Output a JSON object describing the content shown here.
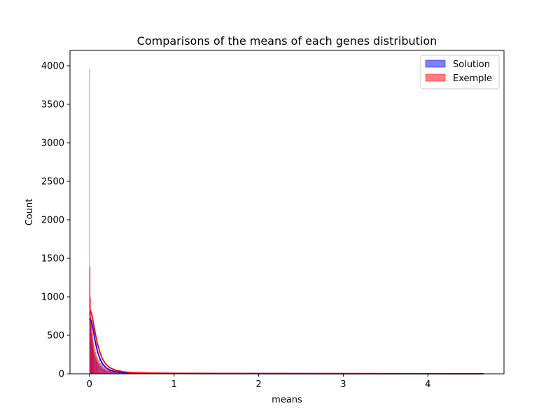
{
  "chart_data": {
    "type": "histogram",
    "title": "Comparisons of the means of each genes distribution",
    "xlabel": "means",
    "ylabel": "Count",
    "xlim": [
      -0.23,
      4.9
    ],
    "ylim": [
      0,
      4200
    ],
    "x_ticks": [
      0,
      1,
      2,
      3,
      4
    ],
    "y_ticks": [
      0,
      500,
      1000,
      1500,
      2000,
      2500,
      3000,
      3500,
      4000
    ],
    "grid": false,
    "legend_position": "top-right",
    "series": [
      {
        "name": "Solution",
        "color": "#0000ff",
        "fill_opacity": 0.5,
        "bins": [
          [
            0.0,
            1400
          ],
          [
            0.005,
            1020
          ],
          [
            0.01,
            720
          ],
          [
            0.015,
            600
          ],
          [
            0.02,
            520
          ],
          [
            0.025,
            470
          ],
          [
            0.03,
            430
          ],
          [
            0.035,
            390
          ],
          [
            0.04,
            340
          ],
          [
            0.045,
            300
          ],
          [
            0.05,
            270
          ],
          [
            0.06,
            230
          ],
          [
            0.07,
            200
          ],
          [
            0.08,
            170
          ],
          [
            0.09,
            150
          ],
          [
            0.1,
            130
          ],
          [
            0.12,
            100
          ],
          [
            0.14,
            80
          ],
          [
            0.16,
            60
          ],
          [
            0.18,
            48
          ],
          [
            0.2,
            38
          ],
          [
            0.25,
            26
          ],
          [
            0.3,
            18
          ],
          [
            0.35,
            12
          ],
          [
            0.4,
            9
          ],
          [
            0.5,
            6
          ],
          [
            0.7,
            4
          ],
          [
            1.0,
            3
          ],
          [
            1.5,
            2
          ],
          [
            2.5,
            1
          ],
          [
            4.0,
            1
          ]
        ],
        "kde": [
          [
            0.0,
            720
          ],
          [
            0.02,
            690
          ],
          [
            0.04,
            600
          ],
          [
            0.06,
            470
          ],
          [
            0.08,
            360
          ],
          [
            0.1,
            270
          ],
          [
            0.13,
            180
          ],
          [
            0.16,
            120
          ],
          [
            0.2,
            75
          ],
          [
            0.25,
            45
          ],
          [
            0.3,
            30
          ],
          [
            0.4,
            16
          ],
          [
            0.5,
            10
          ],
          [
            0.7,
            6
          ],
          [
            1.0,
            4
          ],
          [
            1.5,
            3
          ],
          [
            2.0,
            2
          ],
          [
            3.0,
            1
          ],
          [
            4.0,
            1
          ],
          [
            4.66,
            0
          ]
        ]
      },
      {
        "name": "Exemple",
        "color": "#ff0000",
        "fill_opacity": 0.5,
        "bins": [
          [
            0.0,
            3960
          ],
          [
            0.005,
            1380
          ],
          [
            0.01,
            980
          ],
          [
            0.015,
            800
          ],
          [
            0.02,
            690
          ],
          [
            0.025,
            620
          ],
          [
            0.03,
            560
          ],
          [
            0.035,
            520
          ],
          [
            0.04,
            460
          ],
          [
            0.045,
            410
          ],
          [
            0.05,
            370
          ],
          [
            0.06,
            320
          ],
          [
            0.07,
            280
          ],
          [
            0.08,
            240
          ],
          [
            0.09,
            210
          ],
          [
            0.1,
            180
          ],
          [
            0.12,
            140
          ],
          [
            0.14,
            110
          ],
          [
            0.16,
            85
          ],
          [
            0.18,
            68
          ],
          [
            0.2,
            55
          ],
          [
            0.25,
            38
          ],
          [
            0.3,
            26
          ],
          [
            0.35,
            18
          ],
          [
            0.4,
            13
          ],
          [
            0.5,
            9
          ],
          [
            0.7,
            6
          ],
          [
            1.0,
            4
          ],
          [
            1.5,
            3
          ],
          [
            2.5,
            2
          ],
          [
            4.0,
            1
          ]
        ],
        "kde": [
          [
            0.0,
            780
          ],
          [
            0.015,
            810
          ],
          [
            0.03,
            760
          ],
          [
            0.05,
            640
          ],
          [
            0.07,
            520
          ],
          [
            0.09,
            410
          ],
          [
            0.12,
            290
          ],
          [
            0.15,
            200
          ],
          [
            0.19,
            130
          ],
          [
            0.24,
            80
          ],
          [
            0.3,
            50
          ],
          [
            0.4,
            26
          ],
          [
            0.5,
            16
          ],
          [
            0.7,
            10
          ],
          [
            1.0,
            7
          ],
          [
            1.5,
            5
          ],
          [
            2.0,
            4
          ],
          [
            3.0,
            3
          ],
          [
            4.0,
            2
          ],
          [
            4.66,
            1
          ]
        ]
      }
    ]
  }
}
